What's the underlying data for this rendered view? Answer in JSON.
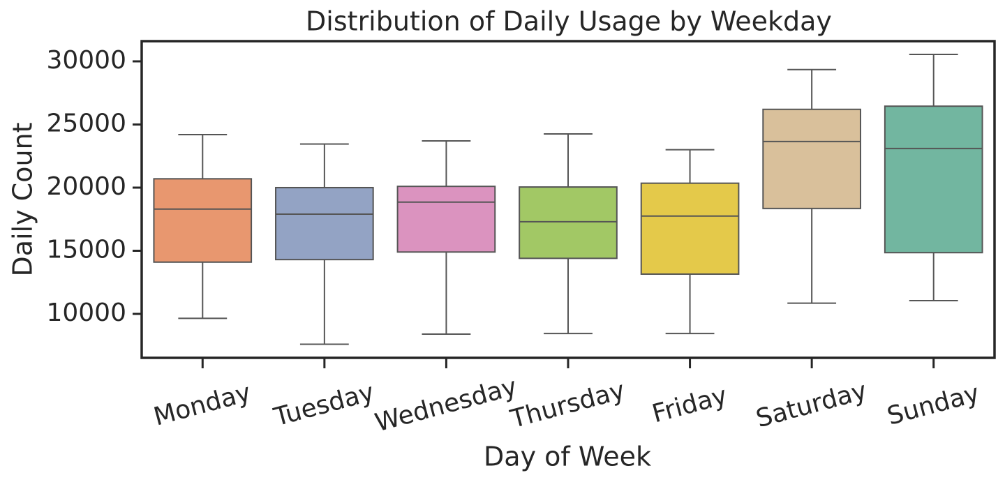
{
  "chart_data": {
    "type": "box",
    "title": "Distribution of Daily Usage by Weekday",
    "x_label": "Day of Week",
    "y_label": "Daily Count",
    "categories": [
      "Monday",
      "Tuesday",
      "Wednesday",
      "Thursday",
      "Friday",
      "Saturday",
      "Sunday"
    ],
    "min": [
      9650,
      7600,
      8400,
      8450,
      8450,
      10850,
      11050
    ],
    "q1": [
      14100,
      14300,
      14900,
      14400,
      13150,
      18350,
      14850
    ],
    "median": [
      18300,
      17900,
      18850,
      17300,
      17750,
      23650,
      23100
    ],
    "q3": [
      20700,
      20000,
      20100,
      20050,
      20350,
      26200,
      26450
    ],
    "max": [
      24200,
      23450,
      23700,
      24250,
      23000,
      29350,
      30550
    ],
    "colors": [
      "#e8976f",
      "#93a3c4",
      "#db93bf",
      "#a2c865",
      "#e4c94a",
      "#d9c09b",
      "#72b6a0"
    ],
    "ylim": [
      6520,
      31600
    ],
    "yticks": [
      10000,
      15000,
      20000,
      25000,
      30000
    ]
  }
}
